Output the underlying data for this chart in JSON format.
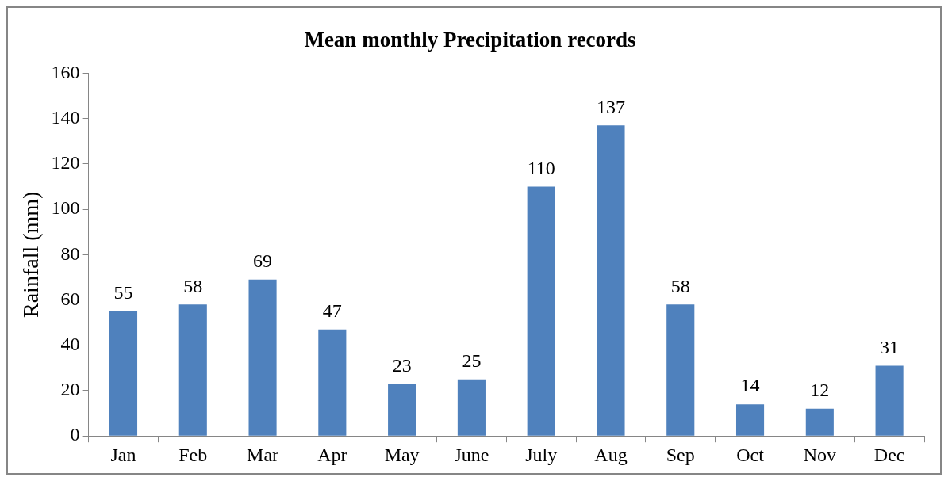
{
  "chart_data": {
    "type": "bar",
    "title": "Mean monthly Precipitation records",
    "ylabel": "Rainfall (mm)",
    "categories": [
      "Jan",
      "Feb",
      "Mar",
      "Apr",
      "May",
      "June",
      "July",
      "Aug",
      "Sep",
      "Oct",
      "Nov",
      "Dec"
    ],
    "values": [
      55,
      58,
      69,
      47,
      23,
      25,
      110,
      137,
      58,
      14,
      12,
      31
    ],
    "color": "#4f81bd",
    "ylim": [
      0,
      160
    ],
    "yticks": [
      0,
      20,
      40,
      60,
      80,
      100,
      120,
      140,
      160
    ],
    "data_labels": true,
    "legend": false
  }
}
